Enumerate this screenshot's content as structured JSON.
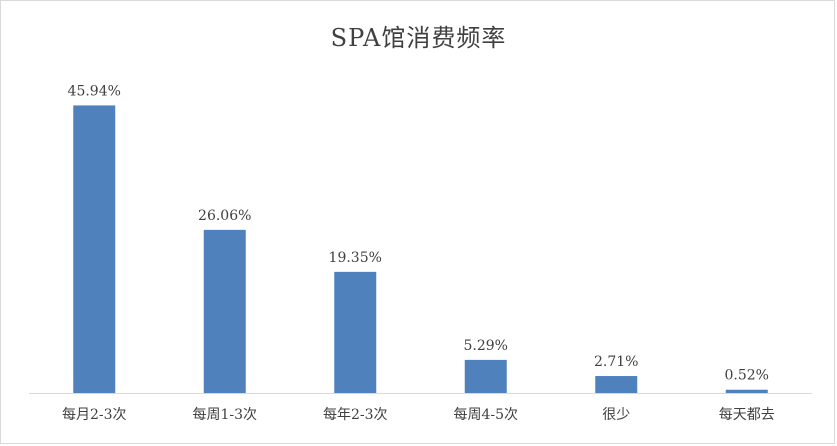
{
  "chart_data": {
    "type": "bar",
    "title": "SPA馆消费频率",
    "categories": [
      "每月2-3次",
      "每周1-3次",
      "每年2-3次",
      "每周4-5次",
      "很少",
      "每天都去"
    ],
    "values": [
      45.94,
      26.06,
      19.35,
      5.29,
      2.71,
      0.52
    ],
    "data_labels": [
      "45.94%",
      "26.06%",
      "19.35%",
      "5.29%",
      "2.71%",
      "0.52%"
    ],
    "xlabel": "",
    "ylabel": "",
    "ylim": [
      0,
      50
    ],
    "grid": false,
    "legend": "none",
    "bar_color": "#4f81bd",
    "axis_color": "#d9d9d9",
    "text_color": "#404040"
  }
}
